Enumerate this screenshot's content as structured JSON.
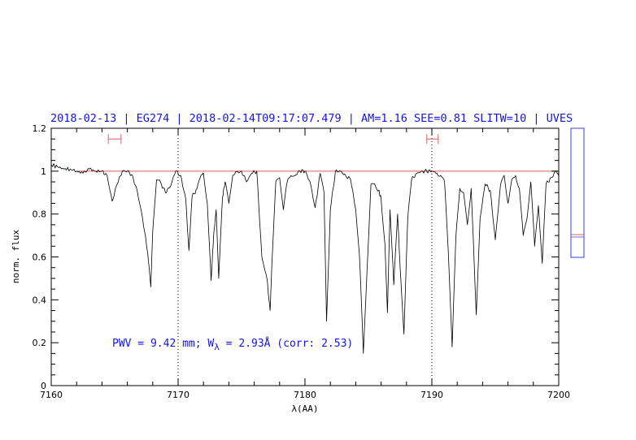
{
  "chart_data": {
    "type": "line",
    "title": "2018-02-13 | EG274 | 2018-02-14T09:17:07.479 | AM=1.16  SEE=0.81  SLITW=10 | UVES",
    "xlabel": "λ(AA)",
    "ylabel": "norm. flux",
    "xlim": [
      7160,
      7200
    ],
    "ylim": [
      0,
      1.2
    ],
    "x_ticks": [
      7160,
      7170,
      7180,
      7190,
      7200
    ],
    "y_ticks": [
      0,
      0.2,
      0.4,
      0.6,
      0.8,
      1,
      1.2
    ],
    "x_tick_labels": [
      "7160",
      "7170",
      "7180",
      "7190",
      "7200"
    ],
    "y_tick_labels": [
      "0",
      "0.2",
      "0.4",
      "0.6",
      "0.8",
      "1",
      "1.2"
    ],
    "grid": false,
    "reference_line": {
      "y": 1.0,
      "color": "#e06060"
    },
    "vertical_dotted_lines": [
      7170,
      7190
    ],
    "continuum_markers": [
      {
        "x_start": 7164.5,
        "x_end": 7165.5,
        "y": 1.15
      },
      {
        "x_start": 7189.6,
        "x_end": 7190.5,
        "y": 1.15
      }
    ],
    "series": [
      {
        "color": "#000000",
        "x": [
          7160.0,
          7160.5,
          7161.0,
          7161.5,
          7162.0,
          7162.5,
          7163.0,
          7163.5,
          7164.0,
          7164.4,
          7164.8,
          7165.2,
          7165.6,
          7166.0,
          7166.4,
          7166.8,
          7167.2,
          7167.6,
          7167.85,
          7168.0,
          7168.3,
          7168.6,
          7169.0,
          7169.4,
          7169.8,
          7170.2,
          7170.6,
          7170.85,
          7171.1,
          7171.5,
          7171.8,
          7172.0,
          7172.3,
          7172.6,
          7172.8,
          7173.0,
          7173.2,
          7173.5,
          7173.7,
          7174.0,
          7174.3,
          7174.7,
          7175.0,
          7175.4,
          7175.8,
          7176.2,
          7176.6,
          7177.0,
          7177.25,
          7177.4,
          7177.7,
          7178.0,
          7178.3,
          7178.6,
          7178.9,
          7179.2,
          7179.6,
          7180.0,
          7180.4,
          7180.8,
          7181.2,
          7181.5,
          7181.7,
          7182.0,
          7182.4,
          7182.8,
          7183.2,
          7183.6,
          7184.0,
          7184.3,
          7184.6,
          7184.9,
          7185.2,
          7185.5,
          7185.8,
          7186.0,
          7186.3,
          7186.5,
          7186.7,
          7187.0,
          7187.3,
          7187.5,
          7187.8,
          7188.1,
          7188.4,
          7188.8,
          7189.2,
          7189.6,
          7190.0,
          7190.4,
          7190.7,
          7191.0,
          7191.3,
          7191.6,
          7191.9,
          7192.2,
          7192.5,
          7192.8,
          7193.1,
          7193.5,
          7193.8,
          7194.2,
          7194.6,
          7195.0,
          7195.4,
          7195.7,
          7196.0,
          7196.3,
          7196.6,
          7196.9,
          7197.2,
          7197.5,
          7197.8,
          7198.1,
          7198.4,
          7198.7,
          7199.0,
          7199.4,
          7199.8,
          7200.0
        ],
        "y": [
          1.03,
          1.02,
          1.01,
          1.01,
          1.0,
          0.99,
          1.01,
          1.0,
          1.0,
          0.98,
          0.86,
          0.94,
          1.0,
          1.0,
          0.98,
          0.9,
          0.78,
          0.62,
          0.46,
          0.72,
          0.96,
          0.95,
          0.9,
          0.93,
          1.0,
          0.98,
          0.87,
          0.63,
          0.88,
          0.92,
          0.98,
          0.99,
          0.85,
          0.49,
          0.7,
          0.82,
          0.5,
          0.88,
          0.95,
          0.85,
          0.98,
          1.0,
          1.0,
          0.95,
          0.99,
          1.0,
          0.6,
          0.5,
          0.35,
          0.58,
          0.95,
          0.97,
          0.82,
          0.95,
          0.98,
          0.98,
          1.0,
          1.0,
          0.95,
          0.83,
          0.99,
          0.9,
          0.3,
          0.82,
          1.0,
          1.0,
          0.98,
          0.96,
          0.82,
          0.6,
          0.15,
          0.55,
          0.94,
          0.94,
          0.91,
          0.87,
          0.66,
          0.34,
          0.82,
          0.47,
          0.8,
          0.55,
          0.24,
          0.78,
          0.96,
          0.99,
          1.0,
          1.0,
          1.0,
          0.99,
          0.98,
          0.95,
          0.62,
          0.18,
          0.7,
          0.92,
          0.9,
          0.75,
          0.92,
          0.33,
          0.78,
          0.94,
          0.91,
          0.68,
          0.93,
          0.98,
          0.85,
          0.96,
          0.98,
          0.92,
          0.7,
          0.78,
          0.95,
          0.65,
          0.84,
          0.57,
          0.94,
          0.97,
          1.0,
          0.98
        ]
      }
    ],
    "annotation": "PWV = 9.42 mm; W",
    "annotation_subscript": "λ",
    "annotation_tail": " = 2.93Å (corr: 2.53)"
  },
  "side_panel": {
    "markers": [
      "#e06060",
      "#7070e0"
    ]
  }
}
